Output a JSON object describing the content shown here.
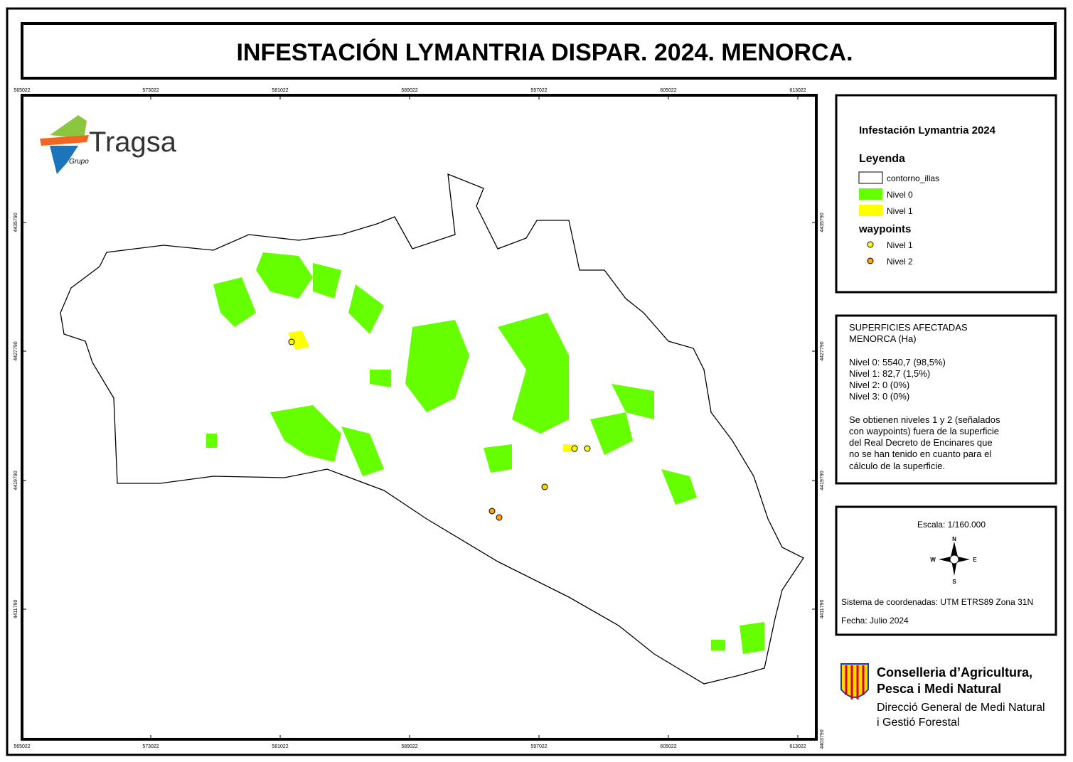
{
  "header": {
    "title": "INFESTACIÓN LYMANTRIA DISPAR. 2024. MENORCA."
  },
  "map": {
    "x_coords": [
      "565022",
      "573022",
      "581022",
      "589022",
      "597022",
      "605022",
      "613022"
    ],
    "y_coords_left": [
      "4435790",
      "4427790",
      "4419790",
      "4411790"
    ],
    "y_coords_right": [
      "4435790",
      "4427790",
      "4419790",
      "4411790",
      "4403790"
    ],
    "logo": {
      "name": "Tragsa",
      "group": "Grupo"
    }
  },
  "legend": {
    "title": "Infestación Lymantria 2024",
    "heading": "Leyenda",
    "items": [
      "contorno_illas",
      "Nivel 0",
      "Nivel 1"
    ],
    "waypoints_heading": "waypoints",
    "waypoints": [
      "Nivel 1",
      "Nivel 2"
    ]
  },
  "stats": {
    "lines": [
      "SUPERFICIES AFECTADAS",
      "MENORCA (Ha)",
      "Nivel 0: 5540,7 (98,5%)",
      "Nivel 1: 82,7 (1,5%)",
      "Nivel 2: 0 (0%)",
      "Nivel 3: 0  (0%)",
      "Se obtienen niveles 1 y 2 (señalados",
      "con waypoints) fuera de la superficie",
      "del Real Decreto de Encinares que",
      "no se han tenido en cuanto para el",
      "cálculo de la superficie."
    ]
  },
  "scale": {
    "scale": "Escala: 1/160.000",
    "north": "N",
    "south": "S",
    "east": "E",
    "west": "W",
    "crs": "Sistema de coordenadas:  UTM ETRS89 Zona 31N",
    "date": "Fecha: Julio 2024"
  },
  "footer": {
    "lines": [
      "Conselleria d’Agricultura,",
      "Pesca i Medi Natural",
      "Direcció General de Medi Natural",
      "i Gestió Forestal"
    ]
  }
}
